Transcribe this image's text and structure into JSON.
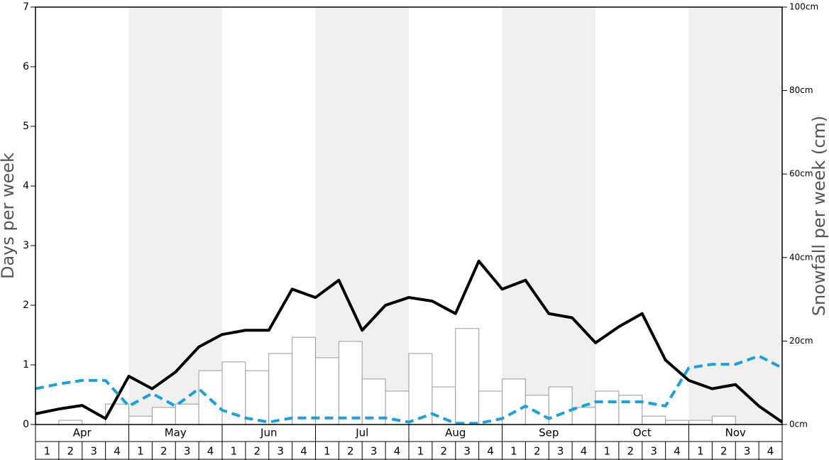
{
  "chart_data": {
    "type": "combo",
    "y_label": "Days per week",
    "y2_label": "Snowfall per week (cm)",
    "months": [
      "Apr",
      "May",
      "Jun",
      "Jul",
      "Aug",
      "Sep",
      "Oct",
      "Nov"
    ],
    "categories": [
      "1",
      "2",
      "3",
      "4",
      "1",
      "2",
      "3",
      "4",
      "1",
      "2",
      "3",
      "4",
      "1",
      "2",
      "3",
      "4",
      "1",
      "2",
      "3",
      "4",
      "1",
      "2",
      "3",
      "4",
      "1",
      "2",
      "3",
      "4",
      "1",
      "2",
      "3",
      "4"
    ],
    "x": [
      0,
      1,
      2,
      3,
      4,
      5,
      6,
      7,
      8,
      9,
      10,
      11,
      12,
      13,
      14,
      15,
      16,
      17,
      18,
      19,
      20,
      21,
      22,
      23,
      24,
      25,
      26,
      27,
      28,
      29,
      30,
      31,
      32
    ],
    "xlim": [
      0,
      32
    ],
    "ylim": [
      0,
      7
    ],
    "yticks": [
      0,
      1,
      2,
      3,
      4,
      5,
      6,
      7
    ],
    "y2lim": [
      0,
      100
    ],
    "y2ticks": [
      {
        "value": 0,
        "label": "0cm"
      },
      {
        "value": 20,
        "label": "20cm"
      },
      {
        "value": 40,
        "label": "40cm"
      },
      {
        "value": 60,
        "label": "60cm"
      },
      {
        "value": 80,
        "label": "80cm"
      },
      {
        "value": 100,
        "label": "100cm"
      }
    ],
    "series": [
      {
        "type": "bar",
        "axis": "y2",
        "color": "#ffffff",
        "edge": "#999999",
        "values": [
          0,
          1.0,
          0,
          4.9,
          2.0,
          4.1,
          4.9,
          12.9,
          15.0,
          12.9,
          17.0,
          20.9,
          16.0,
          19.9,
          10.9,
          8.0,
          17.0,
          9.0,
          23.0,
          8.0,
          10.9,
          7.0,
          9.0,
          4.1,
          8.0,
          7.0,
          2.0,
          1.0,
          1.0,
          2.0,
          0,
          0
        ]
      },
      {
        "type": "line",
        "color": "#000000",
        "dashed": false,
        "values": [
          0.18,
          0.26,
          0.32,
          0.1,
          0.81,
          0.6,
          0.88,
          1.3,
          1.51,
          1.58,
          1.58,
          2.27,
          2.13,
          2.42,
          1.58,
          2.0,
          2.13,
          2.07,
          1.86,
          2.74,
          2.27,
          2.42,
          1.86,
          1.79,
          1.37,
          1.64,
          1.86,
          1.08,
          0.74,
          0.6,
          0.67,
          0.31,
          0.04
        ]
      },
      {
        "type": "line",
        "color": "#1a9fe0",
        "dashed": true,
        "values": [
          0.6,
          0.68,
          0.74,
          0.74,
          0.31,
          0.52,
          0.31,
          0.6,
          0.24,
          0.11,
          0.04,
          0.11,
          0.11,
          0.11,
          0.11,
          0.11,
          0.04,
          0.18,
          0.02,
          0.02,
          0.1,
          0.31,
          0.1,
          0.25,
          0.38,
          0.38,
          0.38,
          0.31,
          0.95,
          1.01,
          1.01,
          1.15,
          0.95
        ]
      }
    ]
  }
}
